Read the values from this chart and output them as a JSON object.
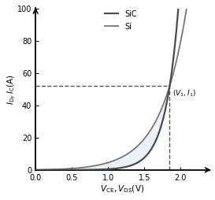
{
  "ylabel": "$I_{\\mathrm{D}},I_{\\mathrm{C}}$(A)",
  "xlabel": "$V_{\\mathrm{CE}},V_{\\mathrm{DS}}$(V)",
  "xlim": [
    0,
    2.4
  ],
  "ylim": [
    0,
    100
  ],
  "yticks": [
    0,
    20,
    40,
    60,
    80,
    100
  ],
  "xticks": [
    0,
    0.5,
    1,
    1.5,
    2
  ],
  "intersection_x": 1.85,
  "intersection_y": 52,
  "annotation_label": "$(V_1,I_1)$",
  "legend_SiC": "SiC",
  "legend_Si": "Si",
  "color_SiC": "#4a4a4a",
  "color_Si": "#777777",
  "color_dashed": "#555555",
  "fill_color": "#c8d8e8",
  "fill_alpha": 0.35,
  "background_color": "#ffffff",
  "figsize": [
    2.73,
    2.54
  ],
  "dpi": 100
}
